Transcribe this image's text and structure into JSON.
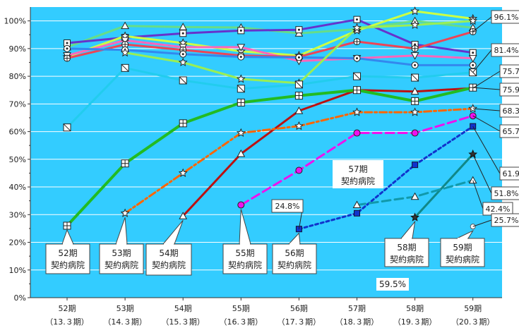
{
  "chart_data": {
    "type": "line",
    "categories": [
      "52期",
      "53期",
      "54期",
      "55期",
      "56期",
      "57期",
      "58期",
      "59期"
    ],
    "categories_sub": [
      "（13.３期）",
      "（14.３期）",
      "（15.３期）",
      "（16.３期）",
      "（17.３期）",
      "（18.３期）",
      "（19.３期）",
      "（20.３期）"
    ],
    "y_ticks": [
      "0%",
      "10%",
      "20%",
      "30%",
      "40%",
      "50%",
      "60%",
      "70%",
      "80%",
      "90%",
      "100%"
    ],
    "ylim": [
      0,
      105
    ],
    "grid": true,
    "colors": {
      "plot_bg": "#33ccff",
      "grid": "#ffffff"
    },
    "series": [
      {
        "color": "#66dd88",
        "width": 3,
        "marker": "triangle",
        "values": [
          90.5,
          98.2,
          97.8,
          97.6,
          95.5,
          97.0,
          100.0,
          97.5
        ]
      },
      {
        "color": "#6633cc",
        "width": 3,
        "marker": "square-dot",
        "values": [
          92.0,
          94.0,
          95.5,
          96.5,
          96.8,
          100.5,
          91.5,
          88.5
        ]
      },
      {
        "color": "#ccff44",
        "width": 3,
        "marker": "star",
        "values": [
          87.0,
          94.5,
          92.0,
          89.0,
          87.5,
          96.5,
          103.5,
          100.8
        ]
      },
      {
        "color": "#ff66bb",
        "width": 3,
        "marker": "tri-down",
        "values": [
          87.5,
          93.0,
          90.5,
          90.5,
          85.5,
          86.5,
          87.5,
          86.5
        ]
      },
      {
        "color": "#ee4455",
        "width": 3,
        "marker": "circle-plus",
        "values": [
          86.5,
          91.5,
          89.5,
          87.5,
          87.0,
          92.5,
          90.0,
          96.1
        ]
      },
      {
        "color": "#3388ee",
        "width": 3,
        "marker": "circle-dot",
        "values": [
          90.0,
          89.5,
          88.0,
          87.0,
          86.8,
          86.5,
          84.0,
          84.0
        ]
      },
      {
        "color": "#99ee55",
        "width": 3,
        "marker": "star",
        "values": [
          null,
          88.5,
          85.0,
          79.0,
          77.5,
          97.5,
          98.5,
          100.0
        ]
      },
      {
        "color": "#22ccee",
        "width": 3,
        "marker": "square-diag",
        "values": [
          61.5,
          83.0,
          78.5,
          75.5,
          77.0,
          80.0,
          79.5,
          81.4
        ]
      },
      {
        "color": "#bb1111",
        "width": 3,
        "marker": "triangle",
        "values": [
          null,
          null,
          29.5,
          52.0,
          67.5,
          75.0,
          74.5,
          75.7
        ]
      },
      {
        "color": "#22bb22",
        "width": 4,
        "marker": "square-plus",
        "values": [
          26.0,
          48.5,
          63.0,
          70.5,
          73.0,
          75.0,
          71.0,
          75.9
        ]
      },
      {
        "color": "#ff6600",
        "width": 3,
        "dash": "10 4 3 4",
        "marker": "star",
        "values": [
          null,
          30.5,
          45.0,
          59.5,
          62.0,
          67.0,
          67.0,
          68.3
        ]
      },
      {
        "color": "#ee11ee",
        "width": 3,
        "dash": "12 6",
        "marker": "circle",
        "values": [
          null,
          null,
          null,
          33.5,
          46.0,
          59.5,
          59.5,
          65.7
        ]
      },
      {
        "color": "#1133cc",
        "width": 3,
        "dash": "4 4",
        "marker": "square",
        "values": [
          null,
          null,
          null,
          null,
          24.8,
          30.5,
          48.0,
          61.9
        ]
      },
      {
        "color": "#118888",
        "width": 3,
        "marker": "star-dark",
        "values": [
          null,
          null,
          null,
          null,
          null,
          null,
          29.0,
          51.8
        ]
      },
      {
        "color": "#1199aa",
        "width": 3,
        "dash": "12 6",
        "marker": "triangle",
        "values": [
          null,
          null,
          null,
          null,
          null,
          33.5,
          36.5,
          42.4
        ]
      },
      {
        "color": "#ffffff",
        "width": 0,
        "marker": "circle-small",
        "values": [
          null,
          null,
          null,
          null,
          null,
          null,
          null,
          25.7
        ]
      }
    ],
    "value_labels": [
      {
        "text": "96.1%",
        "series": 4,
        "index": 7
      },
      {
        "text": "81.4%",
        "series": 7,
        "index": 7
      },
      {
        "text": "75.7%",
        "series": 8,
        "index": 7
      },
      {
        "text": "75.9%",
        "series": 9,
        "index": 7
      },
      {
        "text": "68.3%",
        "series": 10,
        "index": 7
      },
      {
        "text": "65.7%",
        "series": 11,
        "index": 7
      },
      {
        "text": "61.9%",
        "series": 12,
        "index": 7
      },
      {
        "text": "51.8%",
        "series": 13,
        "index": 7
      },
      {
        "text": "42.4%",
        "series": 14,
        "index": 7
      },
      {
        "text": "25.7%",
        "series": 15,
        "index": 7
      },
      {
        "text": "59.5%",
        "series": 11,
        "index": 6
      },
      {
        "text": "24.8%",
        "series": 12,
        "index": 4
      }
    ],
    "cohort_labels": [
      {
        "line1": "52期",
        "line2": "契約病院",
        "series": 9,
        "index": 0
      },
      {
        "line1": "53期",
        "line2": "契約病院",
        "series": 10,
        "index": 1
      },
      {
        "line1": "54期",
        "line2": "契約病院",
        "series": 8,
        "index": 2
      },
      {
        "line1": "55期",
        "line2": "契約病院",
        "series": 11,
        "index": 3
      },
      {
        "line1": "56期",
        "line2": "契約病院",
        "series": 12,
        "index": 4
      },
      {
        "line1": "57期",
        "line2": "契約病院",
        "series": 14,
        "index": 5
      },
      {
        "line1": "58期",
        "line2": "契約病院",
        "series": 13,
        "index": 6
      },
      {
        "line1": "59期",
        "line2": "契約病院",
        "series": 15,
        "index": 7
      }
    ]
  }
}
